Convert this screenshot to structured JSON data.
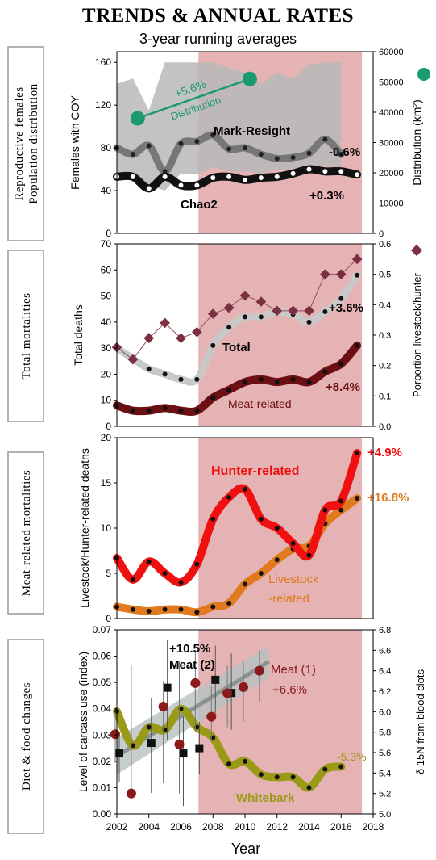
{
  "header": {
    "title": "TRENDS & ANNUAL RATES",
    "subtitle": "3-year running averages"
  },
  "x_axis": {
    "label": "Year",
    "ticks": [
      "2002",
      "2004",
      "2006",
      "2008",
      "2010",
      "2012",
      "2014",
      "2016",
      "2018"
    ]
  },
  "colors": {
    "shade": "#e5b3b4",
    "mark_resight_band": "#b8b8b8",
    "distribution": "#1a9a6e",
    "proportion": "#7a3040",
    "meat_related": "#6b0f12",
    "hunter": "#f01010",
    "livestock": "#e07a1c",
    "whitebark": "#9a9a16",
    "meat2": "#111111",
    "meat1": "#8c1a1a"
  },
  "chart_data": [
    {
      "type": "line",
      "panel_label": "Reproductive females Population distribution",
      "ylabel": "Females with COY",
      "ylim": [
        0,
        170
      ],
      "yticks": [
        0,
        40,
        80,
        120,
        160
      ],
      "y2label": "Distribution (km²)",
      "y2lim": [
        0,
        60000
      ],
      "y2ticks": [
        "0",
        "10000",
        "20000",
        "30000",
        "40000",
        "50000",
        "60000"
      ],
      "series": [
        {
          "name": "Mark-Resight",
          "x": [
            2002,
            2003,
            2004,
            2005,
            2006,
            2007,
            2008,
            2009,
            2010,
            2011,
            2012,
            2013,
            2014,
            2015,
            2016
          ],
          "values": [
            80,
            74,
            82,
            58,
            84,
            86,
            92,
            79,
            80,
            74,
            70,
            71,
            75,
            88,
            74
          ],
          "band_lower": [
            55,
            52,
            45,
            40,
            56,
            55,
            62,
            58,
            58,
            56,
            60,
            58,
            60,
            64,
            60
          ],
          "band_upper": [
            140,
            145,
            115,
            160,
            160,
            160,
            160,
            155,
            150,
            140,
            150,
            145,
            158,
            160,
            160
          ]
        },
        {
          "name": "Chao2",
          "x": [
            2002,
            2003,
            2004,
            2005,
            2006,
            2007,
            2008,
            2009,
            2010,
            2011,
            2012,
            2013,
            2014,
            2015,
            2016,
            2017
          ],
          "values": [
            53,
            53,
            42,
            53,
            45,
            45,
            52,
            53,
            50,
            52,
            53,
            56,
            60,
            58,
            58,
            55
          ]
        },
        {
          "name": "Distribution",
          "axis": "right",
          "x": [
            2003.3,
            2010.3
          ],
          "values": [
            38000,
            51000
          ]
        }
      ],
      "annotations": {
        "mark_resight_rate": "-0.6%",
        "chao2_rate": "+0.3%",
        "distribution_rate": "+5.6%",
        "distribution_label": "Distribution"
      }
    },
    {
      "type": "line",
      "panel_label": "Total mortalities",
      "ylabel": "Total deaths",
      "ylim": [
        0,
        70
      ],
      "yticks": [
        0,
        10,
        20,
        30,
        40,
        50,
        60,
        70
      ],
      "y2label": "Porportion livestock/hunter",
      "y2lim": [
        0,
        0.6
      ],
      "y2ticks": [
        "0.0",
        "0.1",
        "0.2",
        "0.3",
        "0.4",
        "0.5",
        "0.6"
      ],
      "series": [
        {
          "name": "Total",
          "x": [
            2002,
            2003,
            2004,
            2005,
            2006,
            2007,
            2008,
            2009,
            2010,
            2011,
            2012,
            2013,
            2014,
            2015,
            2016,
            2017
          ],
          "values": [
            30,
            26,
            22,
            20,
            18,
            18,
            31,
            38,
            42,
            42,
            44,
            43,
            40,
            44,
            49,
            58
          ]
        },
        {
          "name": "Meat-related",
          "x": [
            2002,
            2003,
            2004,
            2005,
            2006,
            2007,
            2008,
            2009,
            2010,
            2011,
            2012,
            2013,
            2014,
            2015,
            2016,
            2017
          ],
          "values": [
            8,
            6,
            6,
            7,
            6,
            6,
            11,
            14,
            17,
            18,
            17,
            18,
            17,
            21,
            24,
            31
          ]
        },
        {
          "name": "Proportion livestock/hunter",
          "axis": "right",
          "x": [
            2002,
            2003,
            2004,
            2005,
            2006,
            2007,
            2008,
            2009,
            2010,
            2011,
            2012,
            2013,
            2014,
            2015,
            2016,
            2017
          ],
          "values": [
            0.26,
            0.22,
            0.29,
            0.34,
            0.29,
            0.31,
            0.37,
            0.39,
            0.43,
            0.41,
            0.38,
            0.38,
            0.38,
            0.5,
            0.5,
            0.55
          ]
        }
      ],
      "annotations": {
        "total_rate": "+3.6%",
        "meat_rate": "+8.4%"
      }
    },
    {
      "type": "line",
      "panel_label": "Meat-related mortalities",
      "ylabel": "Livestock/Hunter-related deaths",
      "ylim": [
        0,
        20
      ],
      "yticks": [
        0,
        5,
        10,
        15,
        20
      ],
      "series": [
        {
          "name": "Hunter-related",
          "x": [
            2002,
            2003,
            2004,
            2005,
            2006,
            2007,
            2008,
            2009,
            2010,
            2011,
            2012,
            2013,
            2014,
            2015,
            2016,
            2017
          ],
          "values": [
            6.7,
            4.3,
            6.3,
            5,
            4,
            6,
            11,
            13.4,
            14.3,
            11,
            10,
            8.3,
            7,
            12,
            13,
            18.3
          ]
        },
        {
          "name": "Livestock-related",
          "x": [
            2002,
            2003,
            2004,
            2005,
            2006,
            2007,
            2008,
            2009,
            2010,
            2011,
            2012,
            2013,
            2014,
            2015,
            2016,
            2017
          ],
          "values": [
            1.3,
            1,
            0.8,
            1,
            1,
            0.7,
            1.3,
            1.7,
            3.8,
            5,
            6.5,
            7.7,
            8,
            10.5,
            12,
            13.3
          ]
        }
      ],
      "annotations": {
        "hunter_rate": "+4.9%",
        "livestock_rate": "+16.8%",
        "hunter_label": "Hunter-related",
        "livestock_label_1": "Livestock",
        "livestock_label_2": "-related"
      }
    },
    {
      "type": "scatter",
      "panel_label": "Diet & food changes",
      "ylabel": "Level of carcass use (index)",
      "ylim": [
        0,
        0.07
      ],
      "yticks": [
        "0.00",
        "0.01",
        "0.02",
        "0.03",
        "0.04",
        "0.05",
        "0.06",
        "0.07"
      ],
      "y2label": "δ 15N from blood clots",
      "y2lim": [
        5.0,
        6.8
      ],
      "y2ticks": [
        "5.0",
        "5.2",
        "5.4",
        "5.6",
        "5.8",
        "6.0",
        "6.2",
        "6.4",
        "6.6",
        "6.8"
      ],
      "series": [
        {
          "name": "Meat (2)",
          "x": [
            2002,
            2004,
            2005,
            2006,
            2007,
            2008,
            2009
          ],
          "values": [
            0.023,
            0.027,
            0.048,
            0.023,
            0.025,
            0.051,
            0.046
          ],
          "err_low": [
            0.012,
            0.008,
            0.028,
            0.003,
            0.015,
            0.038,
            0.032
          ],
          "err_high": [
            0.031,
            0.044,
            0.066,
            0.037,
            0.035,
            0.064,
            0.061
          ]
        },
        {
          "name": "Meat (1)",
          "axis": "right",
          "x": [
            2002,
            2003,
            2005,
            2006,
            2007,
            2008,
            2009,
            2010,
            2011
          ],
          "values": [
            5.78,
            5.2,
            6.05,
            5.68,
            6.28,
            5.95,
            6.18,
            6.24,
            6.4
          ],
          "err_low": [
            5.5,
            5.15,
            5.3,
            5.2,
            5.8,
            5.7,
            5.85,
            5.9,
            6.1
          ],
          "err_high": [
            6.0,
            6.45,
            6.3,
            6.5,
            6.6,
            6.25,
            6.45,
            6.5,
            6.6
          ]
        },
        {
          "name": "Whitebark",
          "x": [
            2002,
            2003,
            2004,
            2005,
            2006,
            2007,
            2008,
            2009,
            2010,
            2011,
            2012,
            2013,
            2014,
            2015,
            2016
          ],
          "values": [
            0.039,
            0.026,
            0.033,
            0.032,
            0.04,
            0.033,
            0.029,
            0.019,
            0.02,
            0.015,
            0.014,
            0.014,
            0.01,
            0.017,
            0.018
          ]
        }
      ],
      "annotations": {
        "meat2_rate": "+10.5%",
        "meat2_label": "Meat (2)",
        "meat1_label": "Meat (1)",
        "meat1_rate": "+6.6%",
        "whitebark_rate": "-5.3%",
        "whitebark_label": "Whitebark"
      }
    }
  ]
}
